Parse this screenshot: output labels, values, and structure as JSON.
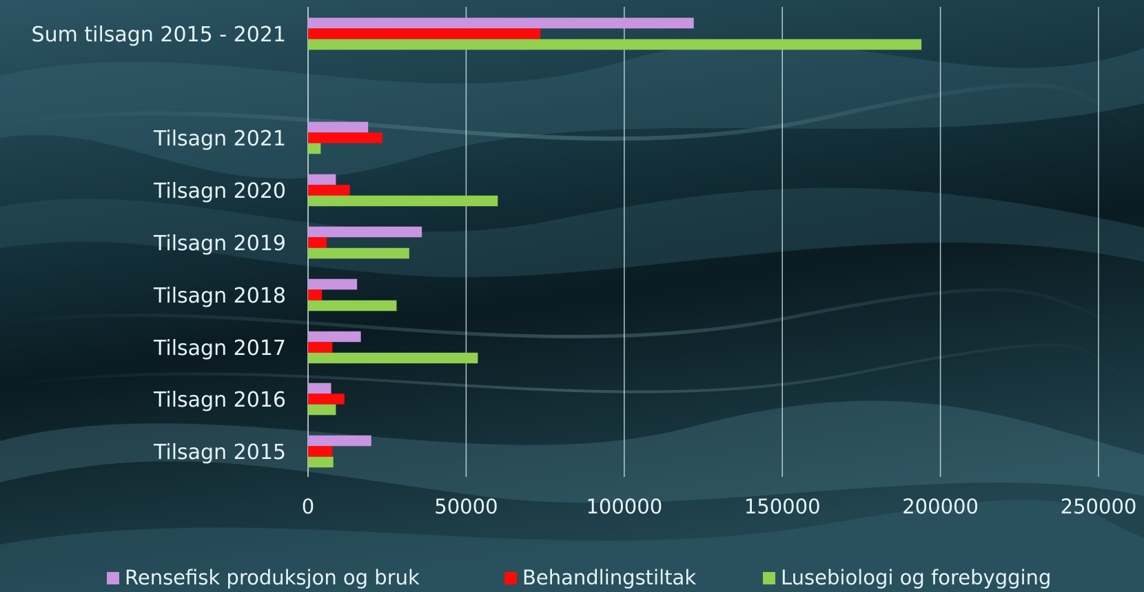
{
  "chart_data": {
    "type": "bar",
    "orientation": "horizontal",
    "categories": [
      "Sum tilsagn 2015 - 2021",
      "",
      "Tilsagn 2021",
      "Tilsagn 2020",
      "Tilsagn 2019",
      "Tilsagn 2018",
      "Tilsagn 2017",
      "Tilsagn 2016",
      "Tilsagn 2015"
    ],
    "series": [
      {
        "name": "Rensefisk produksjon og bruk",
        "color": "#c994e0",
        "values": [
          122000,
          null,
          19000,
          8800,
          36000,
          15500,
          16700,
          7300,
          20000
        ]
      },
      {
        "name": "Behandlingstiltak",
        "color": "#ff0a0a",
        "values": [
          73500,
          null,
          23500,
          13200,
          5900,
          4400,
          7700,
          11500,
          7700
        ]
      },
      {
        "name": "Lusebiologi og forebygging",
        "color": "#92d050",
        "values": [
          194000,
          null,
          4000,
          60000,
          32000,
          28000,
          53700,
          8800,
          8000
        ]
      }
    ],
    "xlim": [
      0,
      250000
    ],
    "xticks": [
      "0",
      "50000",
      "100000",
      "150000",
      "200000",
      "250000"
    ],
    "title": "",
    "xlabel": "",
    "ylabel": "",
    "grid": "vertical",
    "legend_position": "bottom"
  }
}
